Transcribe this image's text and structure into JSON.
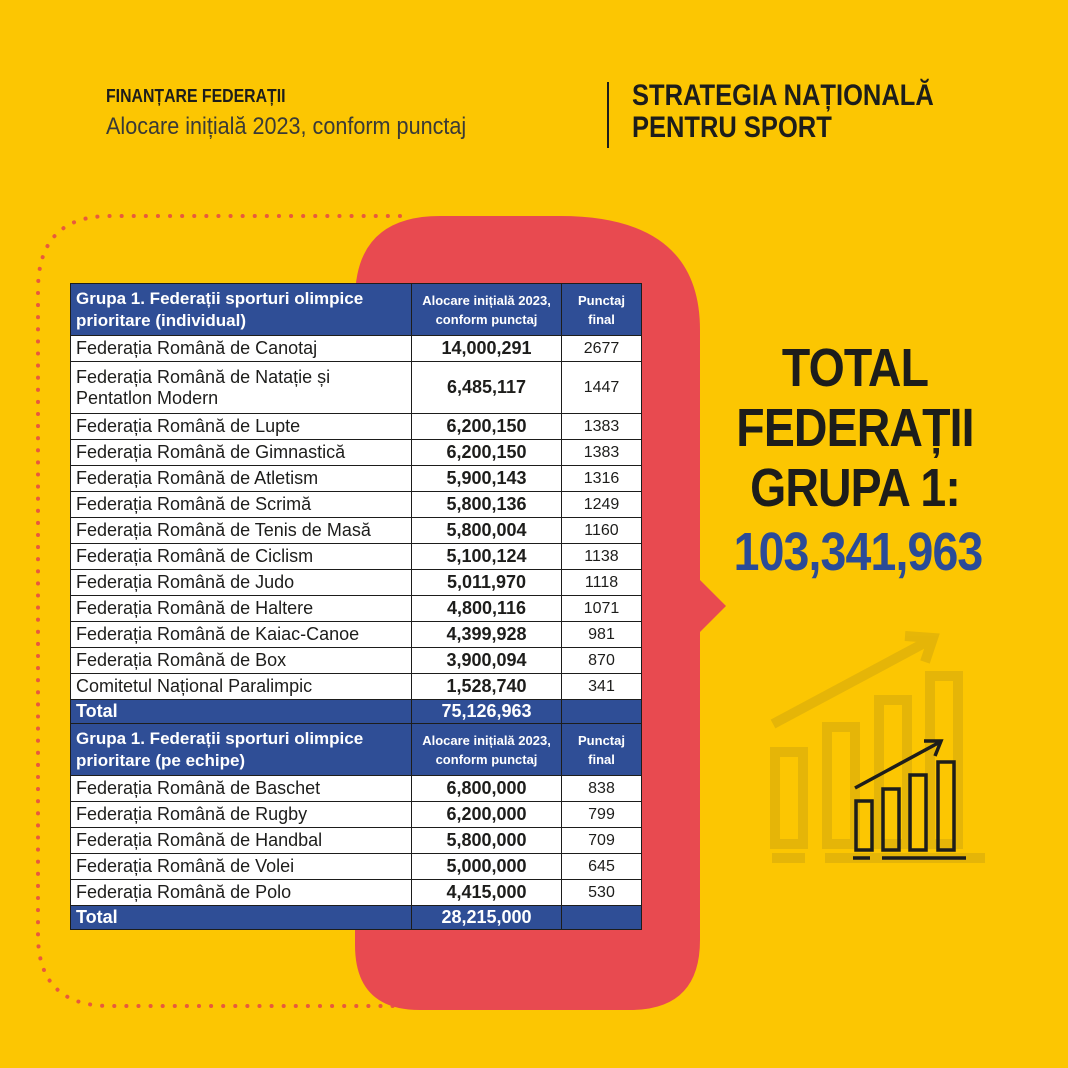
{
  "header": {
    "kicker": "FINANȚARE FEDERAȚII",
    "subtitle": "Alocare inițială 2023, conform punctaj",
    "brand_line1": "STRATEGIA NAȚIONALĂ",
    "brand_line2": "PENTRU SPORT"
  },
  "colors": {
    "background": "#fcc602",
    "accent_red": "#e84a50",
    "table_header": "#2f4e96",
    "total_number": "#2b4b97"
  },
  "tables": [
    {
      "headers": [
        "Grupa 1. Federații sporturi olimpice prioritare (individual)",
        "Alocare inițială 2023, conform punctaj",
        "Punctaj final"
      ],
      "rows": [
        [
          "Federația Română de Canotaj",
          "14,000,291",
          "2677"
        ],
        [
          "Federația Română de Natație și Pentatlon Modern",
          "6,485,117",
          "1447"
        ],
        [
          "Federația Română de Lupte",
          "6,200,150",
          "1383"
        ],
        [
          "Federația Română de Gimnastică",
          "6,200,150",
          "1383"
        ],
        [
          "Federația Română de Atletism",
          "5,900,143",
          "1316"
        ],
        [
          "Federația Română de Scrimă",
          "5,800,136",
          "1249"
        ],
        [
          "Federația Română de Tenis de Masă",
          "5,800,004",
          "1160"
        ],
        [
          "Federația Română de Ciclism",
          "5,100,124",
          "1138"
        ],
        [
          "Federația Română de Judo",
          "5,011,970",
          "1118"
        ],
        [
          "Federația Română de Haltere",
          "4,800,116",
          "1071"
        ],
        [
          "Federația Română de Kaiac-Canoe",
          "4,399,928",
          "981"
        ],
        [
          "Federația Română de Box",
          "3,900,094",
          "870"
        ],
        [
          "Comitetul Național Paralimpic",
          "1,528,740",
          "341"
        ]
      ],
      "total": [
        "Total",
        "75,126,963",
        ""
      ]
    },
    {
      "headers": [
        "Grupa 1. Federații sporturi olimpice prioritare (pe echipe)",
        "Alocare inițială 2023, conform punctaj",
        "Punctaj final"
      ],
      "rows": [
        [
          "Federația Română de Baschet",
          "6,800,000",
          "838"
        ],
        [
          "Federația Română de Rugby",
          "6,200,000",
          "799"
        ],
        [
          "Federația Română de Handbal",
          "5,800,000",
          "709"
        ],
        [
          "Federația Română de Volei",
          "5,000,000",
          "645"
        ],
        [
          "Federația Română de Polo",
          "4,415,000",
          "530"
        ]
      ],
      "total": [
        "Total",
        "28,215,000",
        ""
      ]
    }
  ],
  "summary": {
    "line1": "TOTAL",
    "line2": "FEDERAȚII",
    "line3": "GRUPA 1:",
    "value": "103,341,963"
  },
  "icons": [
    "dotted-frame",
    "growth-chart-icon"
  ]
}
